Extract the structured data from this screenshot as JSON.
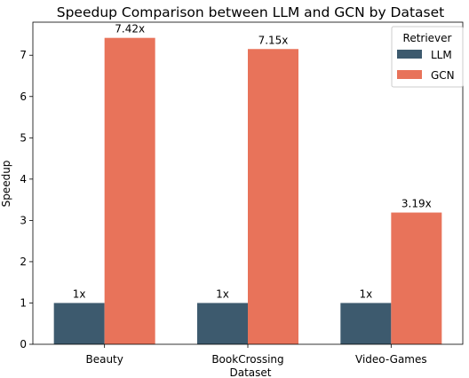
{
  "chart_data": {
    "type": "bar",
    "title": "Speedup Comparison between LLM and GCN by Dataset",
    "xlabel": "Dataset",
    "ylabel": "Speedup",
    "categories": [
      "Beauty",
      "BookCrossing",
      "Video-Games"
    ],
    "series": [
      {
        "name": "LLM",
        "values": [
          1,
          1,
          1
        ],
        "labels": [
          "1x",
          "1x",
          "1x"
        ],
        "color": "#3d5a6e"
      },
      {
        "name": "GCN",
        "values": [
          7.42,
          7.15,
          3.19
        ],
        "labels": [
          "7.42x",
          "7.15x",
          "3.19x"
        ],
        "color": "#e8735a"
      }
    ],
    "ylim": [
      0,
      7.8
    ],
    "yticks": [
      0,
      1,
      2,
      3,
      4,
      5,
      6,
      7
    ],
    "grid": false,
    "legend": {
      "title": "Retriever",
      "placement": "top-right"
    }
  }
}
